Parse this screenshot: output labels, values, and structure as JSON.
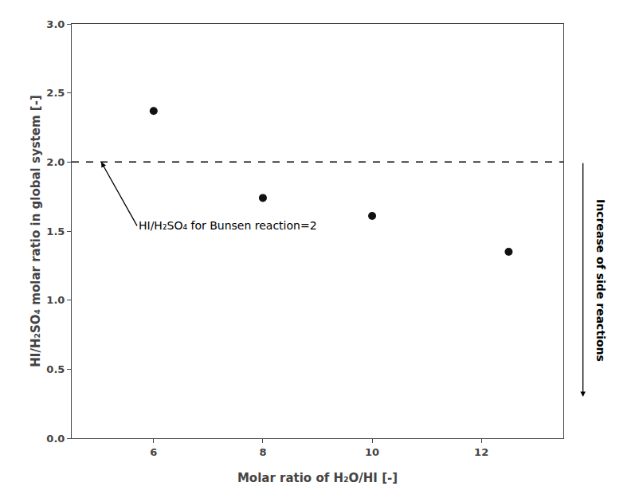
{
  "chart_data": {
    "type": "scatter",
    "x": [
      6,
      8,
      10,
      12.5
    ],
    "values": [
      2.37,
      1.74,
      1.61,
      1.35
    ],
    "color": "#111111",
    "marker": "circle",
    "xlabel": "Molar ratio of H₂O/HI [-]",
    "ylabel": "HI/H₂SO₄ molar ratio in global system [-]",
    "xlim": [
      4.5,
      13.5
    ],
    "ylim": [
      0.0,
      3.0
    ],
    "xticks": [
      6,
      8,
      10,
      12
    ],
    "yticks": [
      {
        "value": 0.0,
        "label": "0.0"
      },
      0.5,
      {
        "value": 1.0,
        "label": "1.0"
      },
      1.5,
      {
        "value": 2.0,
        "label": "2.0"
      },
      2.5,
      {
        "value": 3.0,
        "label": "3.0"
      }
    ],
    "reference_line": 2.0,
    "line_style": "dashed",
    "annotation": "HI/H₂SO₄ for Bunsen reaction=2",
    "side_annotation": "Increase of side reactions",
    "grid": false
  }
}
